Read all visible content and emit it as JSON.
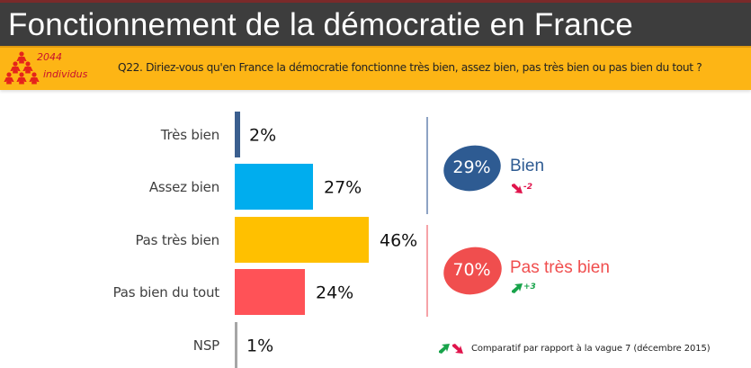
{
  "header": {
    "title": "Fonctionnement de la démocratie en France"
  },
  "question_band": {
    "sample_size": "2044",
    "sample_label": "individus",
    "question": "Q22. Diriez-vous qu'en France la démocratie fonctionne très bien, assez bien, pas très bien ou pas bien du tout ?"
  },
  "chart_data": {
    "type": "bar",
    "orientation": "horizontal",
    "title": "Fonctionnement de la démocratie en France",
    "xlabel": "",
    "ylabel": "",
    "xlim": [
      0,
      100
    ],
    "grid": false,
    "categories": [
      "Très bien",
      "Assez bien",
      "Pas très bien",
      "Pas bien du tout",
      "NSP"
    ],
    "values": [
      2,
      27,
      46,
      24,
      1
    ],
    "value_labels": [
      "2%",
      "27%",
      "46%",
      "24%",
      "1%"
    ],
    "colors": [
      "#3b5f8f",
      "#00adee",
      "#ffc000",
      "#ff5257",
      "#a6a6a6"
    ]
  },
  "summary": {
    "groups": [
      {
        "value_label": "29%",
        "label": "Bien",
        "delta": "-2",
        "direction": "down",
        "color": "#2e5b92",
        "delta_color": "#e0144c"
      },
      {
        "value_label": "70%",
        "label": "Pas très bien",
        "delta": "+3",
        "direction": "up",
        "color": "#f04e4e",
        "delta_color": "#17a34a"
      }
    ],
    "footnote": "Comparatif par rapport à la vague 7 (décembre 2015)"
  }
}
